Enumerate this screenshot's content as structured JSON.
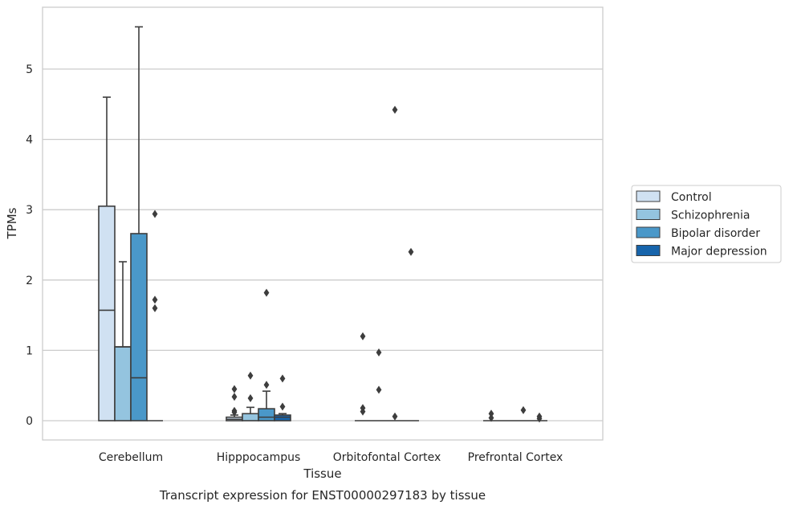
{
  "chart_data": {
    "type": "box",
    "caption": "Transcript expression for ENST00000297183 by tissue",
    "xlabel": "Tissue",
    "ylabel": "TPMs",
    "ylim": [
      -0.28,
      5.9
    ],
    "yticks": [
      0,
      1,
      2,
      3,
      4,
      5
    ],
    "grid": true,
    "legend_position": "right",
    "categories": [
      "Cerebellum",
      "Hipppocampus",
      "Orbitofontal Cortex",
      "Prefrontal Cortex"
    ],
    "series": [
      {
        "name": "Control",
        "color": "#d0e1f2",
        "boxes": [
          {
            "q1": 0,
            "median": 1.57,
            "q3": 3.05,
            "whislo": 0,
            "whishi": 4.6,
            "fliers": []
          },
          {
            "q1": 0,
            "median": 0.02,
            "q3": 0.05,
            "whislo": 0,
            "whishi": 0.08,
            "fliers": [
              0.12,
              0.14,
              0.34,
              0.45
            ]
          },
          {
            "q1": 0,
            "median": 0,
            "q3": 0,
            "whislo": 0,
            "whishi": 0,
            "fliers": [
              0.13,
              0.18,
              1.2
            ]
          },
          {
            "q1": 0,
            "median": 0,
            "q3": 0,
            "whislo": 0,
            "whishi": 0,
            "fliers": [
              0.04,
              0.1
            ]
          }
        ]
      },
      {
        "name": "Schizophrenia",
        "color": "#94c4df",
        "boxes": [
          {
            "q1": 0,
            "median": 1.05,
            "q3": 1.05,
            "whislo": 0,
            "whishi": 2.26,
            "fliers": []
          },
          {
            "q1": 0,
            "median": 0.1,
            "q3": 0.1,
            "whislo": 0,
            "whishi": 0.19,
            "fliers": [
              0.32,
              0.64
            ]
          },
          {
            "q1": 0,
            "median": 0,
            "q3": 0,
            "whislo": 0,
            "whishi": 0,
            "fliers": [
              0.44,
              0.97
            ]
          },
          {
            "q1": 0,
            "median": 0,
            "q3": 0,
            "whislo": 0,
            "whishi": 0,
            "fliers": []
          }
        ]
      },
      {
        "name": "Bipolar disorder",
        "color": "#4a98c9",
        "boxes": [
          {
            "q1": 0,
            "median": 0.61,
            "q3": 2.66,
            "whislo": 0,
            "whishi": 5.6,
            "fliers": []
          },
          {
            "q1": 0,
            "median": 0.05,
            "q3": 0.17,
            "whislo": 0,
            "whishi": 0.42,
            "fliers": [
              0.51,
              1.82
            ]
          },
          {
            "q1": 0,
            "median": 0,
            "q3": 0,
            "whislo": 0,
            "whishi": 0,
            "fliers": [
              0.06,
              4.42
            ]
          },
          {
            "q1": 0,
            "median": 0,
            "q3": 0,
            "whislo": 0,
            "whishi": 0,
            "fliers": [
              0.15
            ]
          }
        ]
      },
      {
        "name": "Major depression",
        "color": "#1764ab",
        "boxes": [
          {
            "q1": 0,
            "median": 0,
            "q3": 0,
            "whislo": 0,
            "whishi": 0,
            "fliers": [
              1.6,
              1.72,
              2.94
            ]
          },
          {
            "q1": 0,
            "median": 0.05,
            "q3": 0.08,
            "whislo": 0,
            "whishi": 0.1,
            "fliers": [
              0.2,
              0.6
            ]
          },
          {
            "q1": 0,
            "median": 0,
            "q3": 0,
            "whislo": 0,
            "whishi": 0,
            "fliers": [
              2.4
            ]
          },
          {
            "q1": 0,
            "median": 0,
            "q3": 0,
            "whislo": 0,
            "whishi": 0,
            "fliers": [
              0.03,
              0.06
            ]
          }
        ]
      }
    ]
  }
}
